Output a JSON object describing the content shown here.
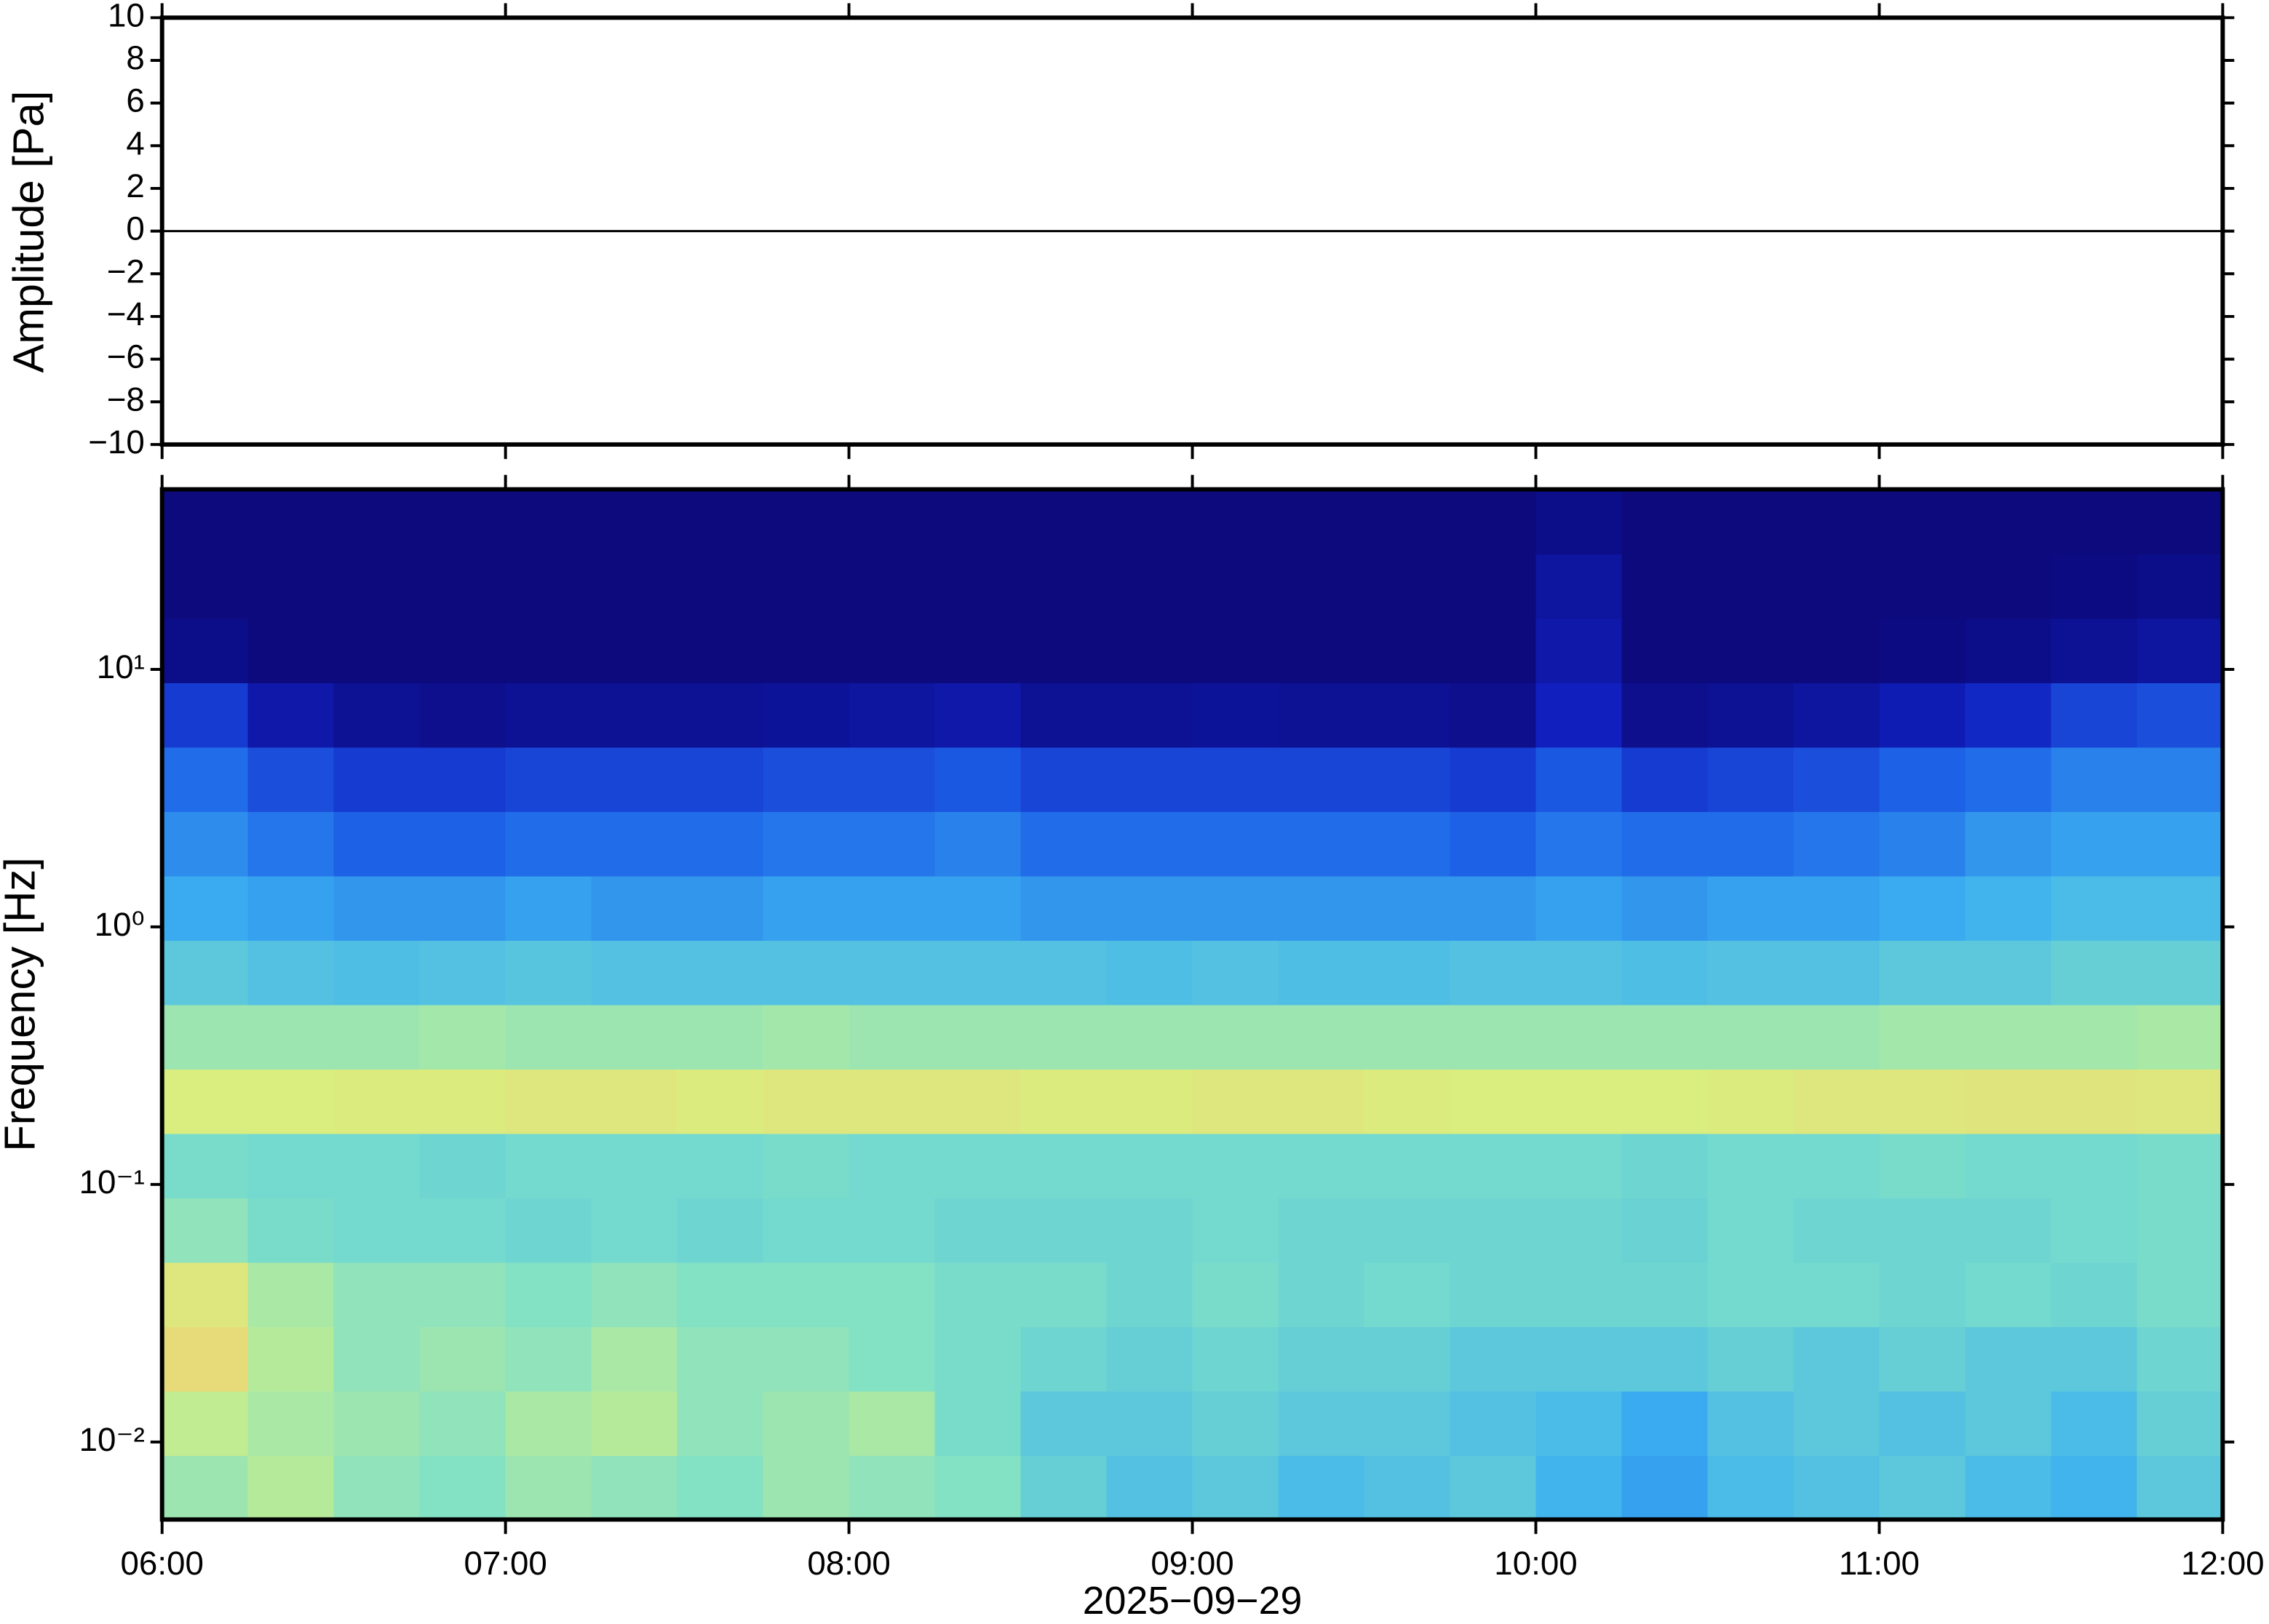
{
  "chart_data": [
    {
      "type": "line",
      "ylabel": "Amplitude [Pa]",
      "xlim": [
        6,
        12
      ],
      "ylim": [
        -10,
        10
      ],
      "xticks": [
        6,
        7,
        8,
        9,
        10,
        11,
        12
      ],
      "yticks": [
        {
          "value": -10,
          "label": "−10"
        },
        {
          "value": -8,
          "label": "−8"
        },
        {
          "value": -6,
          "label": "−6"
        },
        {
          "value": -4,
          "label": "−4"
        },
        {
          "value": -2,
          "label": "−2"
        },
        0,
        2,
        4,
        6,
        8,
        10
      ],
      "series": [
        {
          "color": "#000000",
          "x": [
            6,
            6.5,
            7,
            7.5,
            8,
            8.5,
            9,
            9.5,
            10,
            10.5,
            11,
            11.5,
            12
          ],
          "values": [
            0,
            0,
            0,
            0,
            0,
            0,
            0,
            0,
            0,
            0,
            0,
            0,
            0
          ]
        }
      ]
    },
    {
      "type": "heatmap",
      "ylabel": "Frequency [Hz]",
      "xlabel": "2025−09−29",
      "xlim": [
        6,
        12
      ],
      "ylim": [
        0.005,
        50
      ],
      "log_y": true,
      "xticks": [
        {
          "value": 6,
          "label": "06:00"
        },
        {
          "value": 7,
          "label": "07:00"
        },
        {
          "value": 8,
          "label": "08:00"
        },
        {
          "value": 9,
          "label": "09:00"
        },
        {
          "value": 10,
          "label": "10:00"
        },
        {
          "value": 11,
          "label": "11:00"
        },
        {
          "value": 12,
          "label": "12:00"
        }
      ],
      "yticks": [
        {
          "value": 0.01,
          "label": "10⁻²"
        },
        {
          "value": 0.1,
          "label": "10⁻¹"
        },
        {
          "value": 1,
          "label": "10⁰"
        },
        {
          "value": 10,
          "label": "10¹"
        }
      ],
      "xbins": [
        6,
        6.25,
        6.5,
        6.75,
        7,
        7.25,
        7.5,
        7.75,
        8,
        8.25,
        8.5,
        8.75,
        9,
        9.25,
        9.5,
        9.75,
        10,
        10.25,
        10.5,
        10.75,
        11,
        11.25,
        11.5,
        11.75,
        12
      ],
      "ybins": [
        0.005,
        0.00889,
        0.0158,
        0.0281,
        0.05,
        0.0889,
        0.158,
        0.281,
        0.5,
        0.889,
        1.58,
        2.81,
        5,
        8.89,
        15.8,
        28.1,
        50
      ],
      "zlim": [
        0,
        1
      ],
      "colormap": [
        "#0b0672",
        "#1020c0",
        "#1e64e8",
        "#3cb0f0",
        "#7ee0c8",
        "#d8f080",
        "#f8c070",
        "#f08040"
      ],
      "z": [
        [
          0.62,
          0.66,
          0.6,
          0.58,
          0.62,
          0.6,
          0.58,
          0.62,
          0.6,
          0.58,
          0.52,
          0.48,
          0.5,
          0.46,
          0.48,
          0.5,
          0.44,
          0.4,
          0.46,
          0.48,
          0.5,
          0.46,
          0.44,
          0.5
        ],
        [
          0.68,
          0.64,
          0.62,
          0.6,
          0.64,
          0.66,
          0.6,
          0.62,
          0.64,
          0.56,
          0.5,
          0.5,
          0.52,
          0.5,
          0.5,
          0.48,
          0.46,
          0.42,
          0.48,
          0.5,
          0.48,
          0.5,
          0.46,
          0.52
        ],
        [
          0.78,
          0.66,
          0.6,
          0.62,
          0.6,
          0.64,
          0.6,
          0.6,
          0.58,
          0.56,
          0.54,
          0.52,
          0.54,
          0.52,
          0.52,
          0.5,
          0.5,
          0.5,
          0.52,
          0.5,
          0.52,
          0.5,
          0.5,
          0.54
        ],
        [
          0.74,
          0.64,
          0.6,
          0.6,
          0.58,
          0.6,
          0.58,
          0.58,
          0.58,
          0.56,
          0.56,
          0.54,
          0.56,
          0.54,
          0.55,
          0.54,
          0.54,
          0.54,
          0.55,
          0.55,
          0.54,
          0.55,
          0.54,
          0.56
        ],
        [
          0.6,
          0.56,
          0.55,
          0.55,
          0.54,
          0.55,
          0.54,
          0.55,
          0.55,
          0.54,
          0.54,
          0.54,
          0.55,
          0.54,
          0.54,
          0.54,
          0.54,
          0.53,
          0.55,
          0.54,
          0.54,
          0.54,
          0.55,
          0.56
        ],
        [
          0.56,
          0.55,
          0.55,
          0.54,
          0.55,
          0.55,
          0.55,
          0.56,
          0.55,
          0.55,
          0.55,
          0.55,
          0.55,
          0.55,
          0.55,
          0.55,
          0.55,
          0.54,
          0.55,
          0.55,
          0.56,
          0.55,
          0.55,
          0.56
        ],
        [
          0.72,
          0.72,
          0.73,
          0.73,
          0.74,
          0.74,
          0.73,
          0.74,
          0.74,
          0.74,
          0.73,
          0.73,
          0.74,
          0.74,
          0.73,
          0.72,
          0.72,
          0.72,
          0.73,
          0.74,
          0.74,
          0.75,
          0.75,
          0.74
        ],
        [
          0.62,
          0.62,
          0.62,
          0.63,
          0.62,
          0.62,
          0.62,
          0.63,
          0.62,
          0.62,
          0.62,
          0.62,
          0.62,
          0.62,
          0.62,
          0.62,
          0.62,
          0.62,
          0.62,
          0.62,
          0.63,
          0.63,
          0.63,
          0.64
        ],
        [
          0.5,
          0.48,
          0.47,
          0.48,
          0.49,
          0.48,
          0.48,
          0.48,
          0.48,
          0.48,
          0.48,
          0.47,
          0.48,
          0.47,
          0.47,
          0.48,
          0.48,
          0.47,
          0.48,
          0.48,
          0.5,
          0.5,
          0.52,
          0.52
        ],
        [
          0.42,
          0.4,
          0.38,
          0.38,
          0.4,
          0.38,
          0.38,
          0.4,
          0.4,
          0.4,
          0.38,
          0.38,
          0.38,
          0.38,
          0.38,
          0.38,
          0.4,
          0.38,
          0.4,
          0.4,
          0.42,
          0.44,
          0.46,
          0.46
        ],
        [
          0.36,
          0.32,
          0.28,
          0.28,
          0.3,
          0.3,
          0.3,
          0.32,
          0.32,
          0.34,
          0.3,
          0.3,
          0.3,
          0.3,
          0.3,
          0.28,
          0.32,
          0.3,
          0.3,
          0.32,
          0.34,
          0.38,
          0.4,
          0.4
        ],
        [
          0.3,
          0.24,
          0.2,
          0.2,
          0.22,
          0.22,
          0.22,
          0.24,
          0.24,
          0.26,
          0.22,
          0.22,
          0.22,
          0.22,
          0.22,
          0.2,
          0.26,
          0.2,
          0.22,
          0.24,
          0.28,
          0.3,
          0.34,
          0.34
        ],
        [
          0.2,
          0.1,
          0.06,
          0.05,
          0.06,
          0.06,
          0.06,
          0.07,
          0.08,
          0.1,
          0.06,
          0.06,
          0.07,
          0.06,
          0.06,
          0.05,
          0.14,
          0.05,
          0.06,
          0.08,
          0.12,
          0.16,
          0.22,
          0.24
        ],
        [
          0.04,
          0.02,
          0.02,
          0.02,
          0.02,
          0.02,
          0.02,
          0.02,
          0.02,
          0.02,
          0.02,
          0.02,
          0.02,
          0.02,
          0.02,
          0.02,
          0.1,
          0.02,
          0.02,
          0.02,
          0.03,
          0.04,
          0.06,
          0.08
        ],
        [
          0.02,
          0.02,
          0.02,
          0.02,
          0.02,
          0.02,
          0.02,
          0.02,
          0.02,
          0.02,
          0.02,
          0.02,
          0.02,
          0.02,
          0.02,
          0.02,
          0.08,
          0.02,
          0.02,
          0.02,
          0.02,
          0.02,
          0.03,
          0.04
        ],
        [
          0.02,
          0.02,
          0.02,
          0.02,
          0.02,
          0.02,
          0.02,
          0.02,
          0.02,
          0.02,
          0.02,
          0.02,
          0.02,
          0.02,
          0.02,
          0.02,
          0.04,
          0.02,
          0.02,
          0.02,
          0.02,
          0.02,
          0.02,
          0.02
        ]
      ]
    }
  ]
}
